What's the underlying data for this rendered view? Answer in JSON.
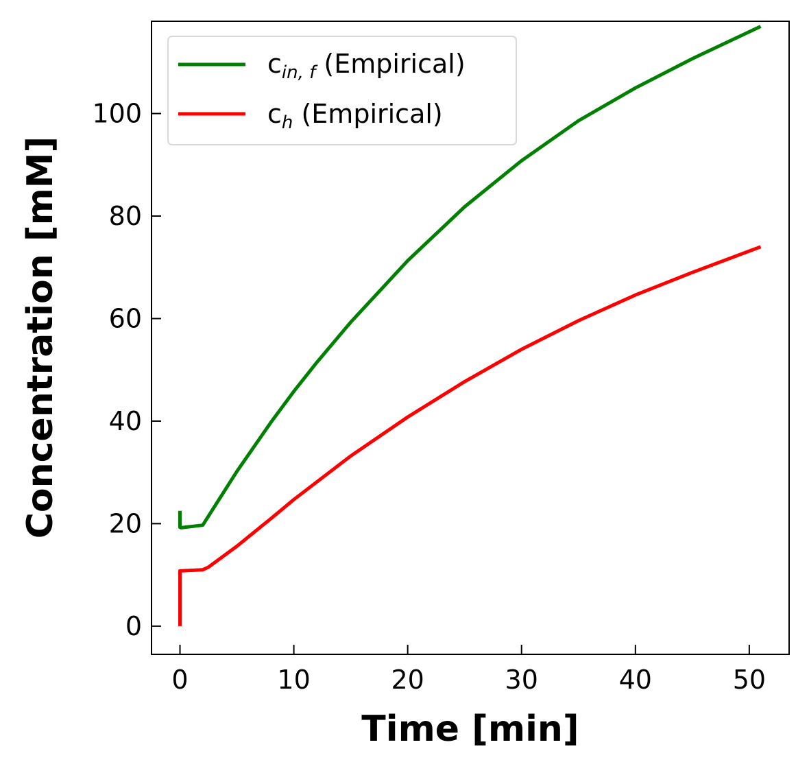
{
  "chart_data": {
    "type": "line",
    "xlabel": "Time [min]",
    "ylabel": "Concentration [mM]",
    "xlim": [
      -2.5,
      53.5
    ],
    "ylim": [
      -5.5,
      118
    ],
    "xticks": [
      0,
      10,
      20,
      30,
      40,
      50
    ],
    "yticks": [
      0,
      20,
      40,
      60,
      80,
      100
    ],
    "grid": false,
    "legend": "top-left",
    "series": [
      {
        "name": "c",
        "name_sub": "in, f",
        "name_suffix": " (Empirical)",
        "color": "#008000",
        "x": [
          0,
          0,
          0.1,
          2,
          3,
          5,
          8,
          10,
          12,
          15,
          20,
          25,
          30,
          35,
          40,
          45,
          51
        ],
        "y": [
          22.5,
          19.3,
          19.2,
          19.7,
          23.2,
          30.2,
          39.8,
          45.8,
          51.4,
          59.3,
          71.3,
          81.8,
          90.8,
          98.6,
          105.0,
          110.7,
          117.0
        ]
      },
      {
        "name": "c",
        "name_sub": "h",
        "name_suffix": " (Empirical)",
        "color": "#ff0000",
        "x": [
          0,
          0,
          0.1,
          2,
          2.5,
          5,
          8,
          10,
          15,
          20,
          25,
          30,
          35,
          40,
          45,
          51
        ],
        "y": [
          0,
          10.8,
          10.8,
          11.0,
          11.5,
          15.6,
          21.0,
          24.7,
          33.2,
          40.8,
          47.7,
          54.0,
          59.6,
          64.6,
          69.0,
          74.0
        ]
      }
    ]
  }
}
